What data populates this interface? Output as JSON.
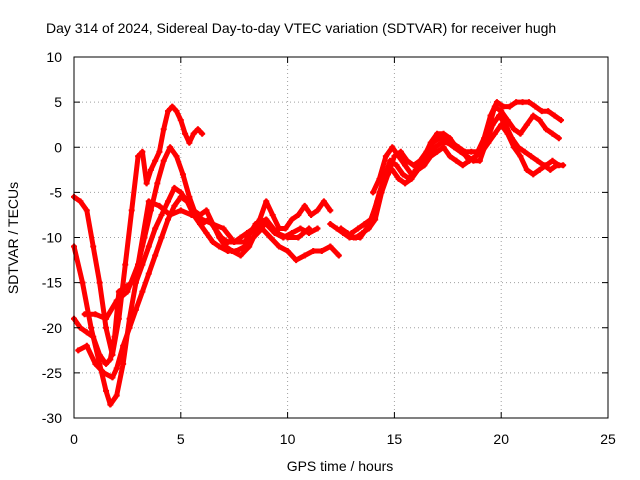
{
  "chart_data": {
    "type": "line",
    "title": "Day 314 of 2024, Sidereal Day-to-day VTEC variation (SDTVAR) for receiver hugh",
    "xlabel": "GPS time / hours",
    "ylabel": "SDTVAR / TECUs",
    "xlim": [
      0,
      25
    ],
    "ylim": [
      -30,
      10
    ],
    "xticks": [
      "0",
      "5",
      "10",
      "15",
      "20",
      "25"
    ],
    "yticks": [
      "10",
      "5",
      "0",
      "-5",
      "-10",
      "-15",
      "-20",
      "-25",
      "-30"
    ],
    "grid": true,
    "legend": "none",
    "color": "#ff0000",
    "series": [
      {
        "x": [
          0.0,
          0.3,
          0.6,
          0.9,
          1.2,
          1.5,
          1.8,
          2.1,
          2.4,
          2.7,
          3.0,
          3.2,
          3.4,
          3.6,
          3.8,
          4.0,
          4.2,
          4.4,
          4.6,
          4.8,
          5.0,
          5.2,
          5.4,
          5.6,
          5.8,
          6.0
        ],
        "y": [
          -5.5,
          -6.0,
          -7.0,
          -11.0,
          -15.0,
          -20.0,
          -23.0,
          -19.0,
          -13.0,
          -7.0,
          -1.0,
          -0.5,
          -4.0,
          -2.5,
          -1.5,
          -0.5,
          2.0,
          4.0,
          4.5,
          4.0,
          3.0,
          1.5,
          0.5,
          1.5,
          2.0,
          1.5
        ]
      },
      {
        "x": [
          0.0,
          0.4,
          0.8,
          1.2,
          1.5,
          1.7,
          2.0,
          2.3,
          2.6,
          2.9,
          3.2,
          3.5,
          3.8,
          4.1,
          4.4,
          4.7,
          5.0,
          5.3,
          5.6,
          5.9,
          6.2,
          6.5,
          6.8,
          7.2,
          7.6,
          8.0,
          8.4,
          8.8,
          9.2,
          9.6,
          10.0,
          10.4,
          10.8,
          11.2,
          11.6,
          12.0,
          12.4
        ],
        "y": [
          -11.0,
          -15.0,
          -20.0,
          -24.0,
          -27.0,
          -28.5,
          -27.5,
          -24.0,
          -19.0,
          -15.0,
          -13.0,
          -11.0,
          -9.0,
          -7.5,
          -6.0,
          -4.5,
          -5.0,
          -6.0,
          -7.5,
          -8.5,
          -9.5,
          -10.5,
          -11.0,
          -11.5,
          -11.5,
          -11.0,
          -10.0,
          -9.0,
          -10.0,
          -11.0,
          -11.5,
          -12.5,
          -12.0,
          -11.5,
          -11.5,
          -11.0,
          -12.0
        ]
      },
      {
        "x": [
          0.0,
          0.3,
          0.6,
          0.9,
          1.2,
          1.5,
          1.7,
          1.9,
          2.1,
          2.4,
          2.7,
          3.0,
          3.3,
          3.6,
          3.9,
          4.2,
          4.5,
          4.8,
          5.1,
          5.4,
          5.7,
          6.0,
          6.3,
          6.6,
          6.9,
          7.2,
          7.5,
          7.8,
          8.1,
          8.4,
          8.7,
          9.0,
          9.3,
          9.6,
          9.9,
          10.2,
          10.5,
          10.8,
          11.1,
          11.4,
          11.7,
          12.0
        ],
        "y": [
          -19.0,
          -20.0,
          -20.5,
          -21.0,
          -23.0,
          -24.0,
          -23.5,
          -21.0,
          -16.0,
          -15.5,
          -15.0,
          -13.0,
          -10.0,
          -7.0,
          -4.0,
          -1.5,
          0.0,
          -1.0,
          -3.0,
          -5.5,
          -7.5,
          -8.5,
          -8.0,
          -9.0,
          -10.0,
          -10.5,
          -10.5,
          -10.0,
          -9.5,
          -9.0,
          -8.0,
          -6.0,
          -7.5,
          -9.0,
          -9.0,
          -8.0,
          -7.5,
          -6.5,
          -7.5,
          -7.0,
          -6.0,
          -7.0
        ]
      },
      {
        "x": [
          0.2,
          0.6,
          1.0,
          1.4,
          1.8,
          2.0,
          2.3,
          2.6,
          2.9,
          3.2,
          3.5,
          3.8,
          4.1,
          4.4,
          4.7,
          5.0,
          5.3,
          5.6,
          5.9,
          6.2,
          6.5,
          6.8,
          7.1,
          7.4,
          7.8,
          8.2,
          8.6,
          9.0,
          9.4,
          9.8,
          10.2,
          10.6,
          11.0,
          11.4
        ],
        "y": [
          -22.5,
          -22.0,
          -24.0,
          -25.0,
          -25.5,
          -24.5,
          -22.0,
          -20.0,
          -18.0,
          -16.0,
          -14.0,
          -12.0,
          -10.0,
          -8.0,
          -6.5,
          -5.5,
          -6.0,
          -7.0,
          -7.5,
          -7.0,
          -8.5,
          -10.0,
          -11.0,
          -11.5,
          -12.0,
          -11.0,
          -9.0,
          -8.5,
          -9.5,
          -10.0,
          -9.5,
          -9.0,
          -9.5,
          -9.0
        ]
      },
      {
        "x": [
          0.5,
          1.0,
          1.5,
          2.0,
          2.5,
          3.0,
          3.5,
          4.0,
          4.5,
          5.0,
          5.5,
          6.0,
          6.5,
          7.0,
          7.5,
          8.0,
          8.5,
          9.0,
          9.5,
          10.0,
          10.5,
          11.0
        ],
        "y": [
          -18.5,
          -18.5,
          -19.0,
          -17.0,
          -16.0,
          -13.0,
          -6.0,
          -6.5,
          -7.5,
          -7.0,
          -7.5,
          -8.0,
          -8.5,
          -9.0,
          -10.5,
          -10.5,
          -8.5,
          -8.0,
          -9.5,
          -10.0,
          -10.0,
          -9.0
        ]
      },
      {
        "x": [
          12.0,
          12.3,
          12.6,
          12.9,
          13.2,
          13.5,
          13.8,
          14.1,
          14.4,
          14.7,
          15.0,
          15.3,
          15.6,
          15.9,
          16.2,
          16.5,
          16.8,
          17.1,
          17.4,
          17.7,
          18.0,
          18.3,
          18.6,
          18.9,
          19.2,
          19.5,
          19.8,
          20.1,
          20.4,
          20.7,
          21.0,
          21.3,
          21.6,
          21.9,
          22.2,
          22.5,
          22.8
        ],
        "y": [
          -8.5,
          -9.0,
          -9.5,
          -10.0,
          -10.0,
          -9.5,
          -9.0,
          -8.0,
          -5.0,
          -3.0,
          -1.0,
          -0.5,
          -1.5,
          -2.0,
          -1.5,
          -0.5,
          0.5,
          1.0,
          1.0,
          0.5,
          0.0,
          -0.5,
          -0.5,
          -0.5,
          1.0,
          3.5,
          5.0,
          4.5,
          4.5,
          5.0,
          5.0,
          5.0,
          4.5,
          4.0,
          4.0,
          3.5,
          3.0
        ]
      },
      {
        "x": [
          12.5,
          12.8,
          13.1,
          13.4,
          13.7,
          14.0,
          14.3,
          14.6,
          14.9,
          15.2,
          15.5,
          15.8,
          16.1,
          16.4,
          16.7,
          17.0,
          17.3,
          17.6,
          17.9,
          18.2,
          18.5,
          18.8,
          19.1,
          19.4,
          19.7,
          20.0,
          20.3,
          20.6,
          20.9,
          21.2,
          21.5,
          21.8,
          22.1,
          22.4,
          22.7
        ],
        "y": [
          -9.0,
          -9.5,
          -10.0,
          -10.0,
          -9.0,
          -7.5,
          -5.0,
          -3.0,
          -2.5,
          -3.5,
          -4.0,
          -3.5,
          -2.5,
          -1.0,
          0.5,
          1.5,
          1.5,
          1.0,
          0.0,
          -0.5,
          -1.5,
          -1.0,
          0.0,
          2.0,
          4.5,
          4.0,
          3.0,
          2.0,
          1.5,
          2.5,
          3.5,
          3.0,
          2.0,
          1.5,
          1.0
        ]
      },
      {
        "x": [
          13.0,
          13.3,
          13.6,
          13.9,
          14.2,
          14.5,
          14.8,
          15.1,
          15.4,
          15.7,
          16.0,
          16.3,
          16.6,
          16.9,
          17.2,
          17.5,
          17.8,
          18.1,
          18.4,
          18.7,
          19.0,
          19.3,
          19.6,
          19.9,
          20.2,
          20.5,
          20.8,
          21.1,
          21.4,
          21.7,
          22.0,
          22.3,
          22.6,
          22.9
        ],
        "y": [
          -9.5,
          -9.0,
          -8.5,
          -8.0,
          -6.0,
          -3.5,
          -1.5,
          -2.0,
          -3.0,
          -3.5,
          -2.5,
          -1.5,
          -1.0,
          0.0,
          0.5,
          0.5,
          0.0,
          -0.5,
          -1.0,
          -1.5,
          -1.5,
          0.5,
          2.5,
          3.5,
          2.5,
          1.0,
          0.0,
          -0.5,
          -1.0,
          -1.5,
          -2.0,
          -2.5,
          -2.0,
          -2.0
        ]
      },
      {
        "x": [
          14.0,
          14.3,
          14.6,
          14.9,
          15.2,
          15.5,
          15.8,
          16.1,
          16.4,
          16.7,
          17.0,
          17.3,
          17.6,
          17.9,
          18.2,
          18.5,
          18.8,
          19.1,
          19.4,
          19.7,
          20.0,
          20.3,
          20.6,
          20.9,
          21.2,
          21.5,
          21.8,
          22.1,
          22.4,
          22.7
        ],
        "y": [
          -5.0,
          -3.5,
          -1.0,
          0.0,
          -1.0,
          -2.0,
          -3.0,
          -2.5,
          -2.0,
          -1.0,
          -0.5,
          0.0,
          -1.0,
          -1.5,
          -2.0,
          -1.5,
          -1.0,
          -0.5,
          0.5,
          1.5,
          2.5,
          1.5,
          0.0,
          -1.0,
          -2.5,
          -3.0,
          -2.5,
          -2.0,
          -1.5,
          -2.0
        ]
      }
    ]
  }
}
